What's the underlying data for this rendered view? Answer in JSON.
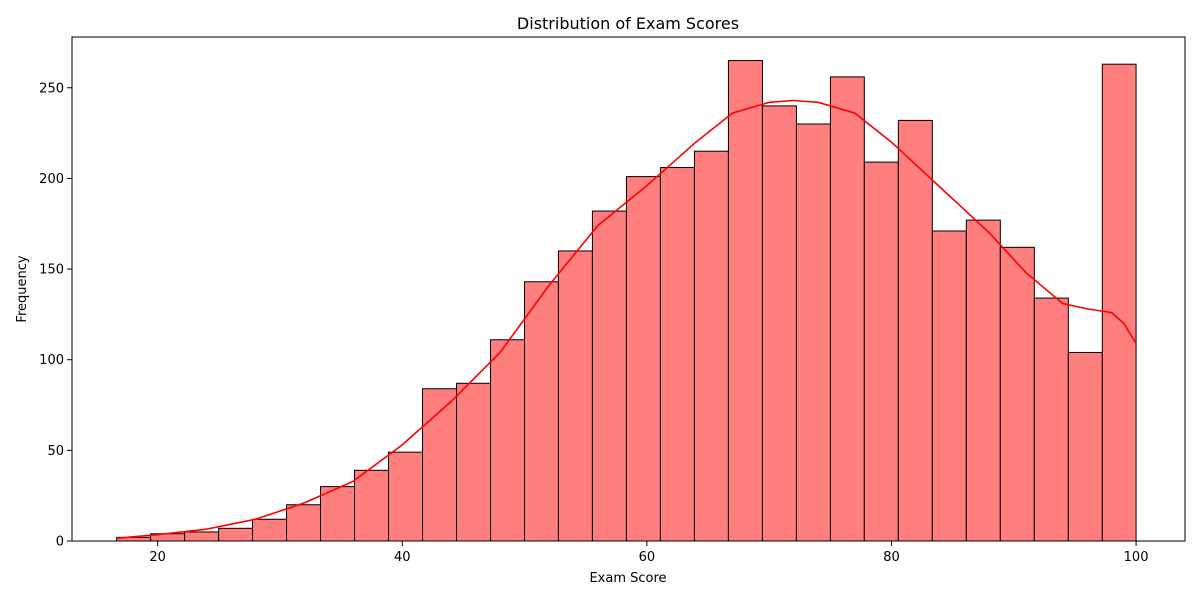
{
  "chart_data": {
    "type": "bar",
    "title": "Distribution of Exam Scores",
    "xlabel": "Exam Score",
    "ylabel": "Frequency",
    "xlim": [
      13,
      104
    ],
    "ylim": [
      0,
      278
    ],
    "xticks": [
      20,
      40,
      60,
      80,
      100
    ],
    "yticks": [
      0,
      50,
      100,
      150,
      200,
      250
    ],
    "grid": false,
    "bar_color": "#ff7f7f",
    "bar_edge_color": "#000000",
    "kde_color": "#ff0000",
    "bins": [
      {
        "x0": 16.65,
        "x1": 19.43,
        "count": 2
      },
      {
        "x0": 19.43,
        "x1": 22.21,
        "count": 4
      },
      {
        "x0": 22.21,
        "x1": 24.99,
        "count": 5
      },
      {
        "x0": 24.99,
        "x1": 27.76,
        "count": 7
      },
      {
        "x0": 27.76,
        "x1": 30.54,
        "count": 12
      },
      {
        "x0": 30.54,
        "x1": 33.32,
        "count": 20
      },
      {
        "x0": 33.32,
        "x1": 36.1,
        "count": 30
      },
      {
        "x0": 36.1,
        "x1": 38.88,
        "count": 39
      },
      {
        "x0": 38.88,
        "x1": 41.66,
        "count": 49
      },
      {
        "x0": 41.66,
        "x1": 44.44,
        "count": 84
      },
      {
        "x0": 44.44,
        "x1": 47.22,
        "count": 87
      },
      {
        "x0": 47.22,
        "x1": 50.0,
        "count": 111
      },
      {
        "x0": 50.0,
        "x1": 52.77,
        "count": 143
      },
      {
        "x0": 52.77,
        "x1": 55.55,
        "count": 160
      },
      {
        "x0": 55.55,
        "x1": 58.33,
        "count": 182
      },
      {
        "x0": 58.33,
        "x1": 61.11,
        "count": 201
      },
      {
        "x0": 61.11,
        "x1": 63.89,
        "count": 206
      },
      {
        "x0": 63.89,
        "x1": 66.67,
        "count": 215
      },
      {
        "x0": 66.67,
        "x1": 69.45,
        "count": 265
      },
      {
        "x0": 69.45,
        "x1": 72.23,
        "count": 240
      },
      {
        "x0": 72.23,
        "x1": 75.01,
        "count": 230
      },
      {
        "x0": 75.01,
        "x1": 77.78,
        "count": 256
      },
      {
        "x0": 77.78,
        "x1": 80.56,
        "count": 209
      },
      {
        "x0": 80.56,
        "x1": 83.34,
        "count": 232
      },
      {
        "x0": 83.34,
        "x1": 86.12,
        "count": 171
      },
      {
        "x0": 86.12,
        "x1": 88.9,
        "count": 177
      },
      {
        "x0": 88.9,
        "x1": 91.68,
        "count": 162
      },
      {
        "x0": 91.68,
        "x1": 94.46,
        "count": 134
      },
      {
        "x0": 94.46,
        "x1": 97.24,
        "count": 104
      },
      {
        "x0": 97.24,
        "x1": 100.0,
        "count": 263
      }
    ],
    "kde": {
      "x": [
        16.6,
        20,
        24,
        28,
        32,
        36,
        40,
        44,
        48,
        52,
        56,
        60,
        64,
        67,
        70,
        72,
        74,
        77,
        80,
        84,
        88,
        91,
        94,
        96,
        98,
        99,
        100
      ],
      "y": [
        1.5,
        3.5,
        6.5,
        12,
        21,
        33,
        53,
        77,
        104,
        141,
        174,
        196,
        220,
        236,
        242,
        243,
        242,
        236,
        220,
        195,
        170,
        148,
        131,
        128,
        126,
        120,
        109
      ]
    }
  }
}
